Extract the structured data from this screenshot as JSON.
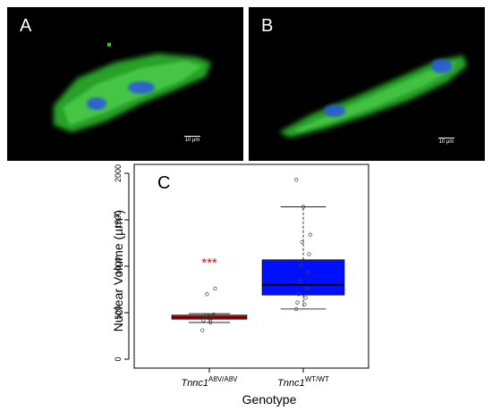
{
  "panels": [
    {
      "letter": "A",
      "scale_label": "10 μm"
    },
    {
      "letter": "B",
      "scale_label": "10 μm"
    }
  ],
  "colors": {
    "stain_green": "#2fbf2f",
    "nucleus_blue": "#2a5ad8",
    "box_mutant": "#cc1111",
    "box_wildtype": "#0010ff",
    "significance": "#ff0000"
  },
  "chart_data": {
    "type": "box",
    "panel_letter": "C",
    "title": "",
    "xlabel": "Genotype",
    "ylabel": "Nuclear Volume (µm³)",
    "ylim": [
      0,
      2000
    ],
    "yticks": [
      0,
      500,
      1000,
      1500,
      2000
    ],
    "grid": false,
    "categories": [
      {
        "base": "Tnnc1",
        "sup": "A8V/A8V"
      },
      {
        "base": "Tnnc1",
        "sup": "WT/WT"
      }
    ],
    "series": [
      {
        "stats": {
          "whisker_low": 395,
          "q1": 430,
          "median": 448,
          "q3": 475,
          "whisker_high": 490
        },
        "points": [
          310,
          395,
          420,
          440,
          450,
          465,
          470,
          480,
          700,
          760
        ],
        "annotation": "***"
      },
      {
        "stats": {
          "whisker_low": 540,
          "q1": 690,
          "median": 800,
          "q3": 1070,
          "whisker_high": 1640
        },
        "points": [
          540,
          590,
          610,
          660,
          700,
          760,
          840,
          930,
          1010,
          1130,
          1260,
          1340,
          1640,
          1930
        ],
        "annotation": ""
      }
    ]
  }
}
